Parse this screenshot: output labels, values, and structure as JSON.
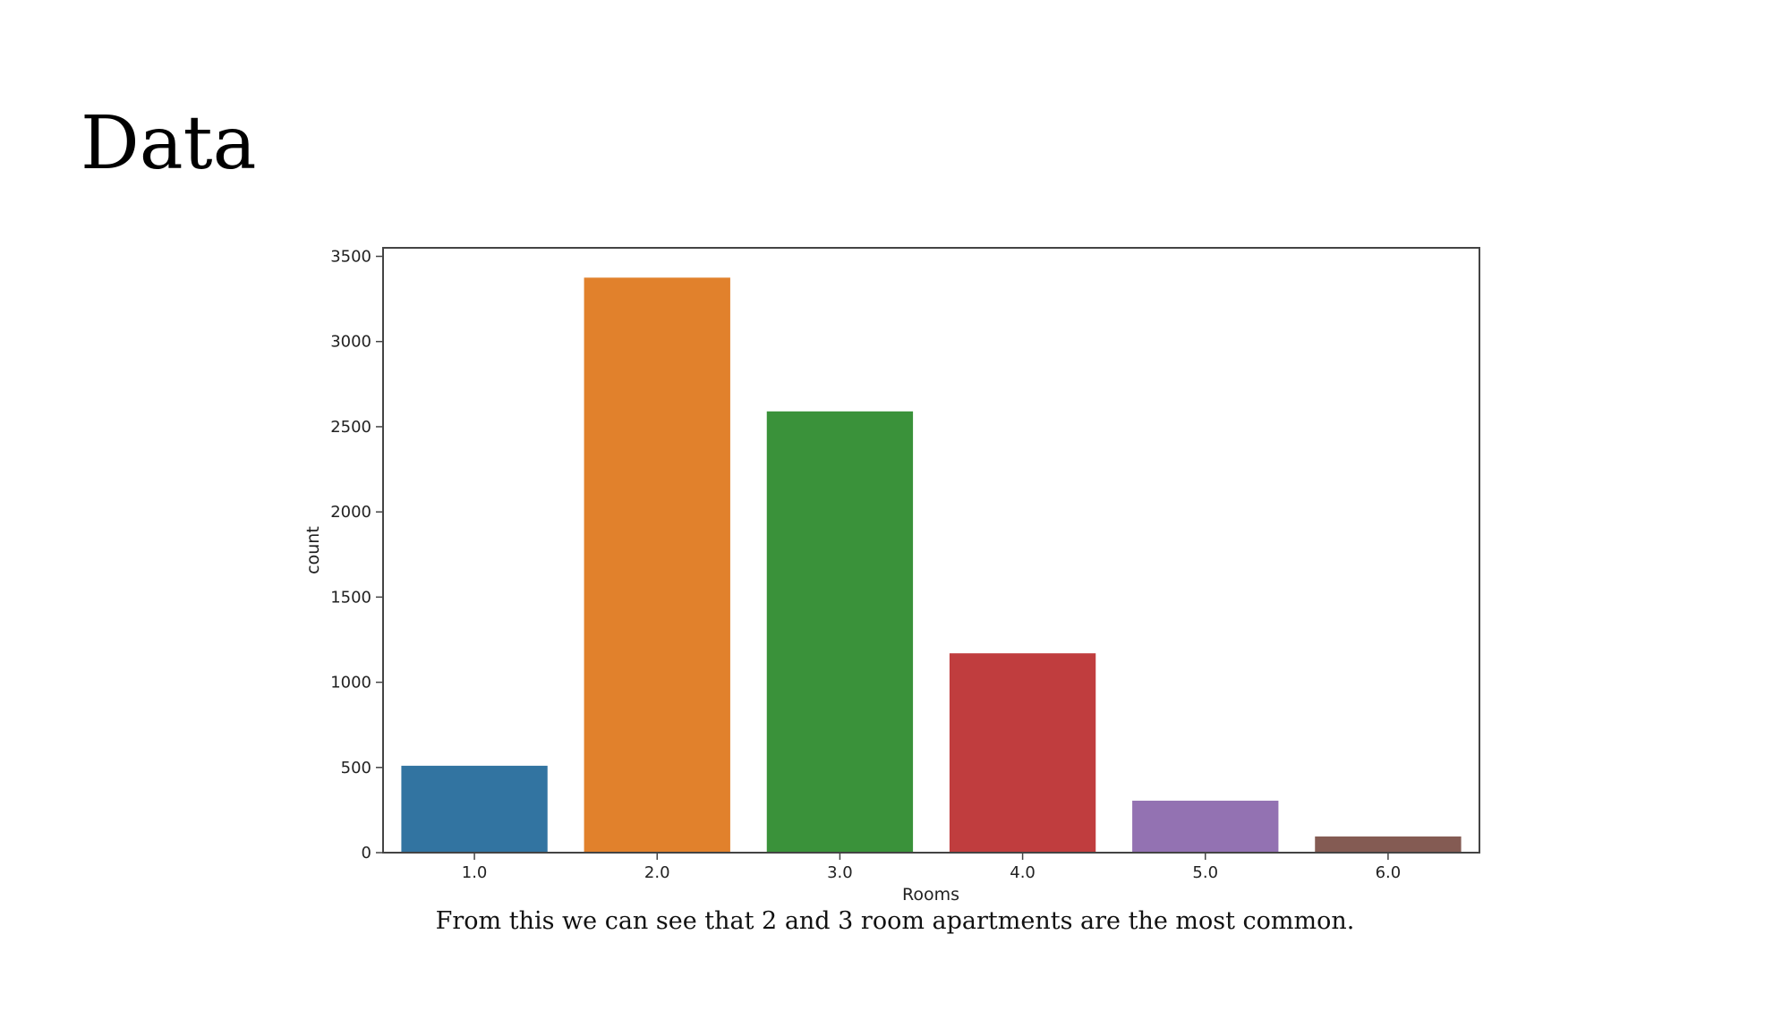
{
  "slide": {
    "title": "Data",
    "caption": "From this we can see that 2 and 3 room apartments are the most common."
  },
  "chart_data": {
    "type": "bar",
    "categories": [
      "1.0",
      "2.0",
      "3.0",
      "4.0",
      "5.0",
      "6.0"
    ],
    "values": [
      510,
      3375,
      2590,
      1170,
      305,
      95
    ],
    "colors": [
      "#3274a1",
      "#e1812c",
      "#3a923a",
      "#c03d3e",
      "#9372b2",
      "#845b53"
    ],
    "xlabel": "Rooms",
    "ylabel": "count",
    "ylim": [
      0,
      3550
    ],
    "yticks": [
      0,
      500,
      1000,
      1500,
      2000,
      2500,
      3000,
      3500
    ],
    "grid": false
  }
}
